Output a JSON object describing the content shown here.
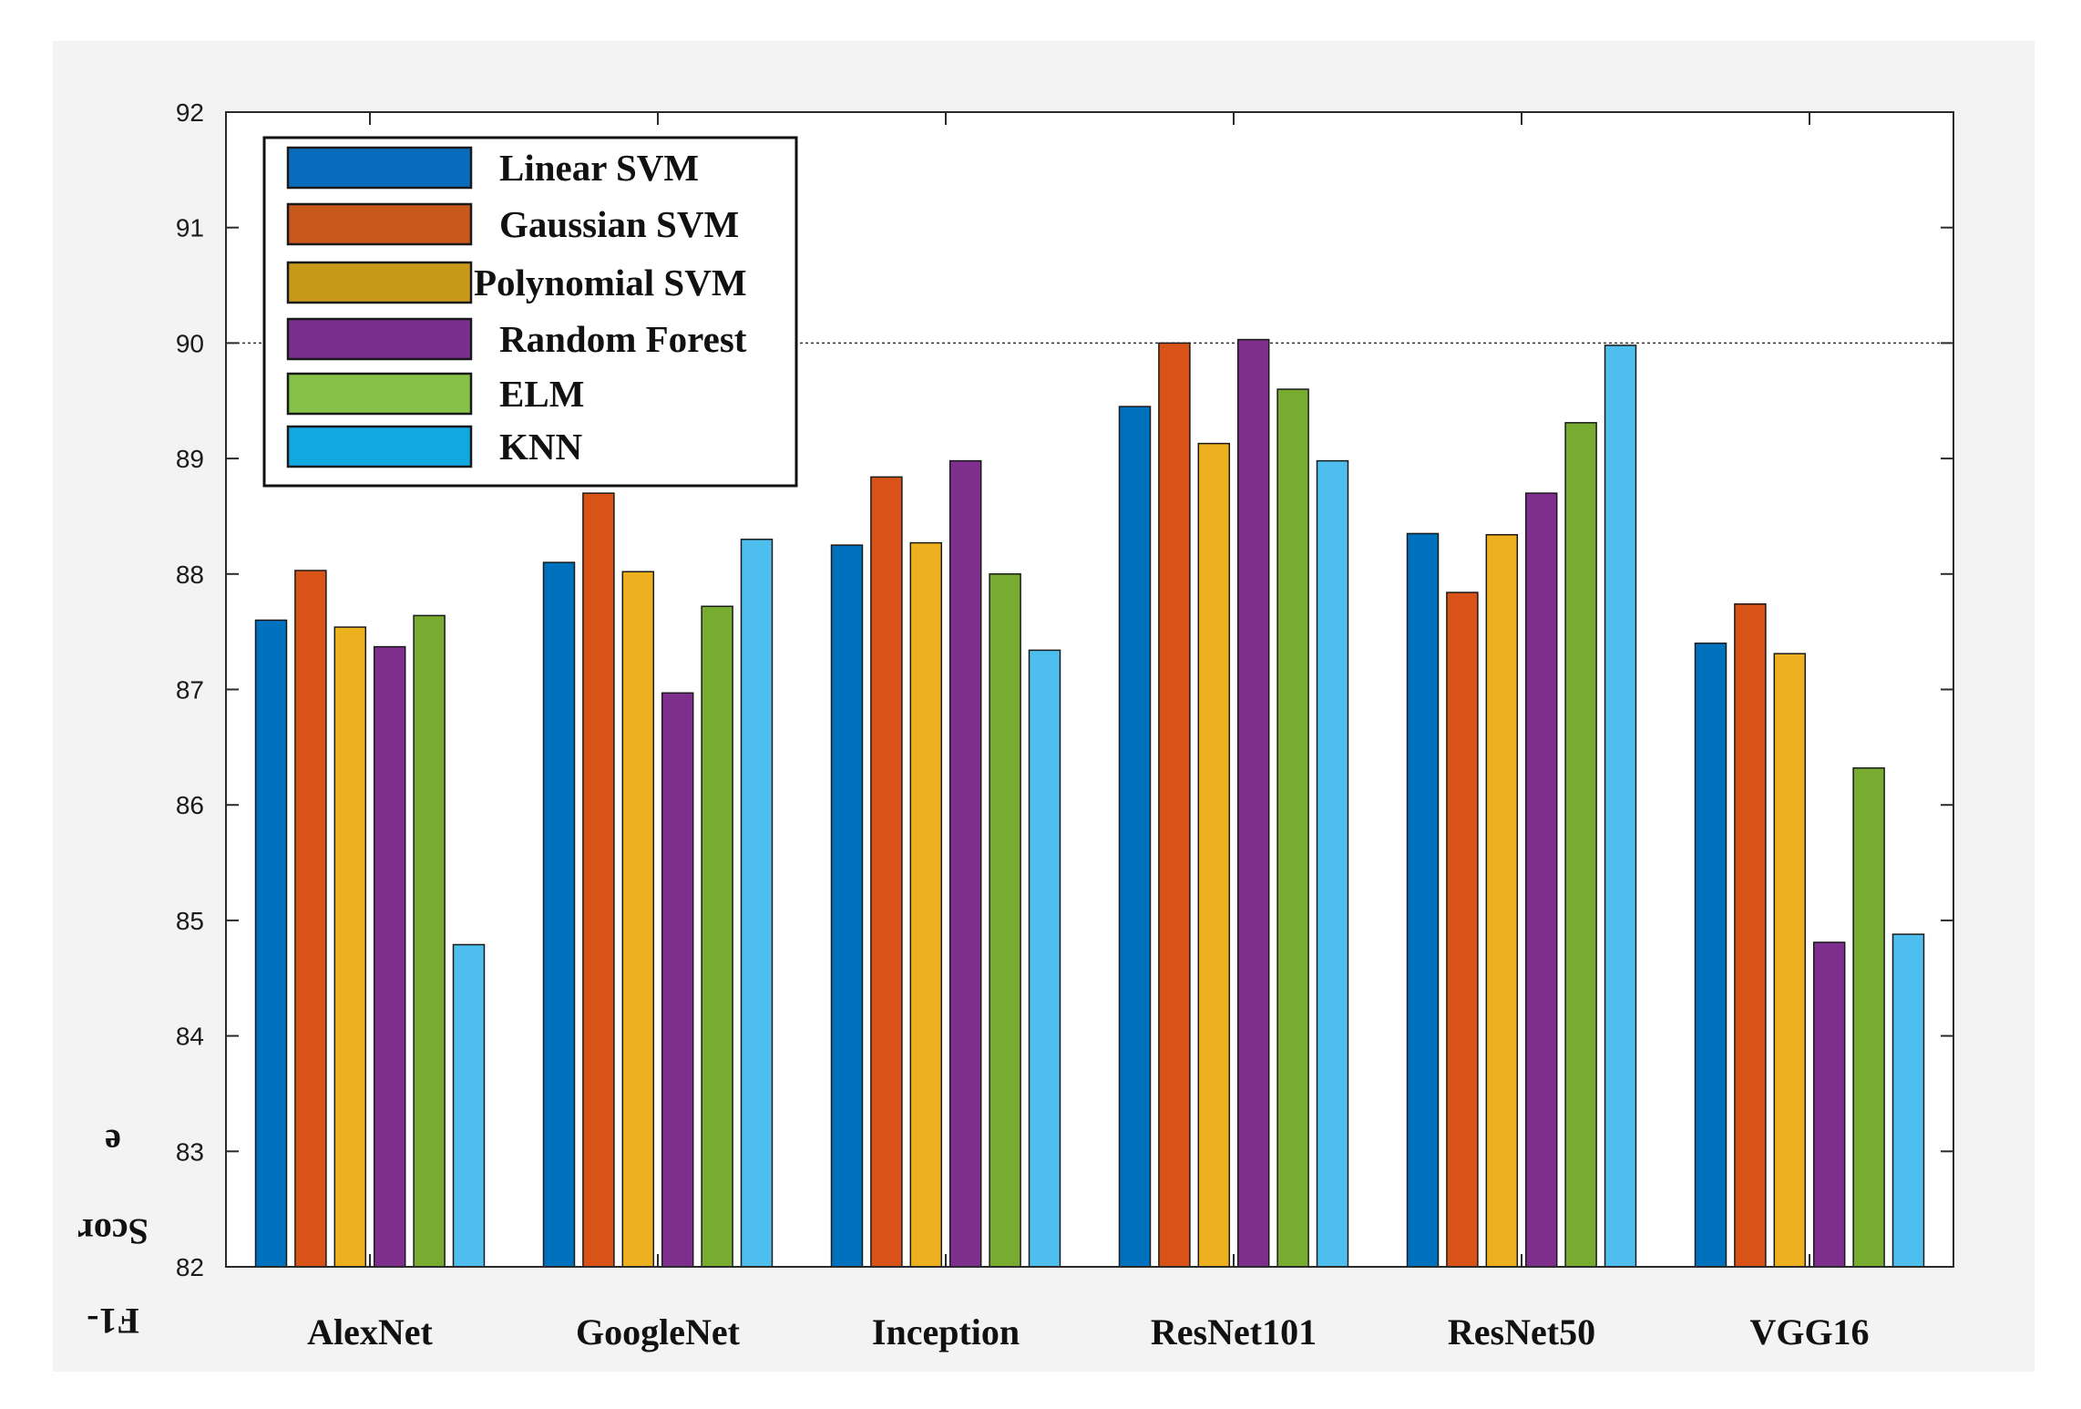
{
  "chart_data": {
    "type": "bar",
    "title": "",
    "xlabel": "",
    "ylabel": "F1-Score",
    "ylabel_lines": [
      "F1-",
      "Scor",
      "e"
    ],
    "ylim": [
      82,
      92
    ],
    "yticks": [
      82,
      83,
      84,
      85,
      86,
      87,
      88,
      89,
      90,
      91,
      92
    ],
    "grid": false,
    "reference_line": 90,
    "legend_position": "top-left",
    "categories": [
      "AlexNet",
      "GoogleNet",
      "Inception",
      "ResNet101",
      "ResNet50",
      "VGG16"
    ],
    "series": [
      {
        "name": "Linear SVM",
        "values": [
          87.6,
          88.1,
          88.25,
          89.45,
          88.35,
          87.4
        ]
      },
      {
        "name": "Gaussian SVM",
        "values": [
          88.03,
          88.7,
          88.84,
          90.0,
          87.84,
          87.74
        ]
      },
      {
        "name": "Polynomial SVM",
        "values": [
          87.54,
          88.02,
          88.27,
          89.13,
          88.34,
          87.31
        ]
      },
      {
        "name": "Random Forest",
        "values": [
          87.37,
          86.97,
          88.98,
          90.03,
          88.7,
          84.81
        ]
      },
      {
        "name": "ELM",
        "values": [
          87.64,
          87.72,
          88.0,
          89.6,
          89.31,
          86.32
        ]
      },
      {
        "name": "KNN",
        "values": [
          84.79,
          88.3,
          87.34,
          88.98,
          89.98,
          84.88
        ]
      }
    ]
  },
  "colors": {
    "bars": [
      "#0072bd",
      "#d95319",
      "#edb120",
      "#7e2f8e",
      "#77ac30",
      "#4dbeee"
    ],
    "legend": [
      "#0a6cbd",
      "#c9581c",
      "#c99a1a",
      "#7a2f8e",
      "#86c24a",
      "#12a9e3"
    ]
  }
}
